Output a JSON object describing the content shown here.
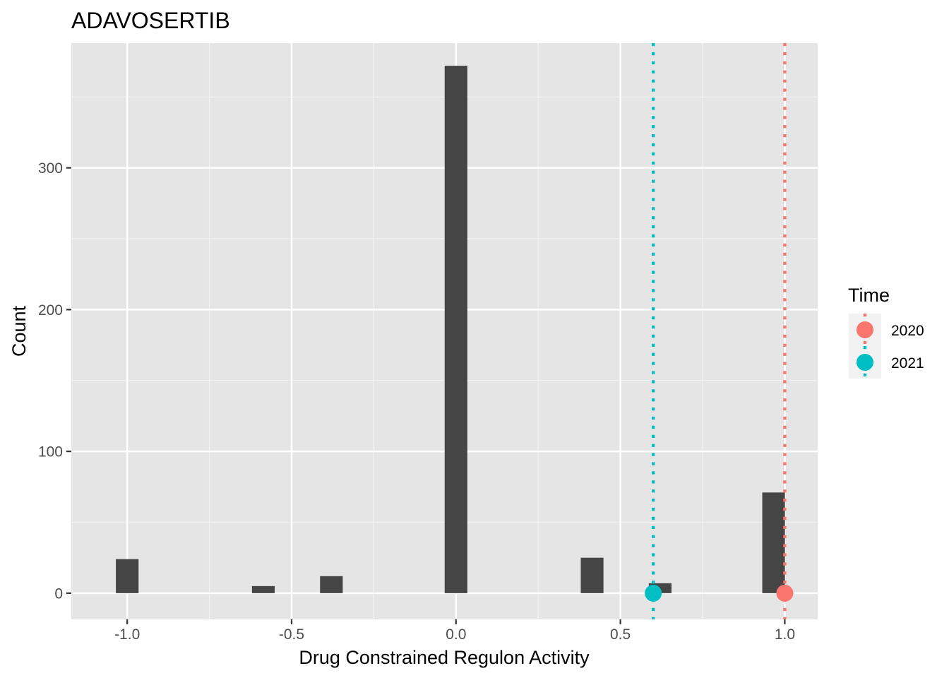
{
  "chart_data": {
    "type": "histogram",
    "title": "ADAVOSERTIB",
    "xlabel": "Drug Constrained Regulon Activity",
    "ylabel": "Count",
    "xlim": [
      -1.17,
      1.1
    ],
    "ylim": [
      -18.5,
      388
    ],
    "x_ticks": [
      -1.0,
      -0.5,
      0.0,
      0.5,
      1.0
    ],
    "x_tick_labels": [
      "-1.0",
      "-0.5",
      "0.0",
      "0.5",
      "1.0"
    ],
    "y_ticks": [
      0,
      100,
      200,
      300
    ],
    "y_tick_labels": [
      "0",
      "100",
      "200",
      "300"
    ],
    "bin_width": 0.069,
    "bins": [
      {
        "x": -1.0,
        "count": 24
      },
      {
        "x": -0.586,
        "count": 5
      },
      {
        "x": -0.379,
        "count": 12
      },
      {
        "x": 0.0,
        "count": 372
      },
      {
        "x": 0.414,
        "count": 25
      },
      {
        "x": 0.621,
        "count": 7
      },
      {
        "x": 0.966,
        "count": 71
      }
    ],
    "reference_lines": [
      {
        "group": "2020",
        "x": 1.0,
        "color": "#f8766d",
        "style": "dotted"
      },
      {
        "group": "2021",
        "x": 0.6,
        "color": "#00bfc4",
        "style": "dotted"
      }
    ],
    "points": [
      {
        "group": "2020",
        "x": 1.0,
        "y": 0,
        "color": "#f8766d"
      },
      {
        "group": "2021",
        "x": 0.6,
        "y": 0,
        "color": "#00bfc4"
      }
    ],
    "legend": {
      "title": "Time",
      "position": "right",
      "items": [
        {
          "label": "2020",
          "color": "#f8766d"
        },
        {
          "label": "2021",
          "color": "#00bfc4"
        }
      ]
    },
    "bar_color": "#454545",
    "panel_background": "#e5e5e5",
    "grid": true
  }
}
